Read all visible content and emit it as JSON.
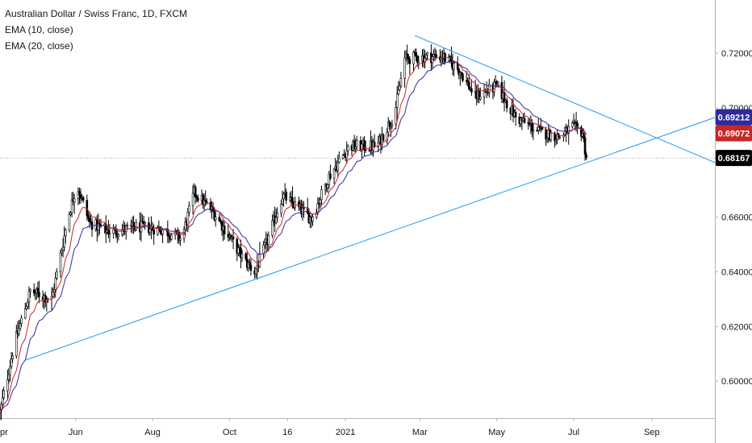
{
  "chart_data": {
    "type": "candlestick",
    "title": "Australian Dollar / Swiss Franc, 1D, FXCM",
    "indicators": [
      "EMA (10, close)",
      "EMA (20, close)"
    ],
    "y_axis": {
      "ticks": [
        "0.72000",
        "0.70000",
        "0.66000",
        "0.64000",
        "0.62000",
        "0.60000"
      ],
      "tick_values": [
        0.72,
        0.7,
        0.66,
        0.64,
        0.62,
        0.6
      ],
      "range": [
        0.5865,
        0.7395
      ]
    },
    "x_axis": {
      "ticks": [
        "pr",
        "Jun",
        "Aug",
        "Oct",
        "16",
        "2021",
        "Mar",
        "May",
        "Jul",
        "Sep"
      ],
      "tick_days": [
        1,
        61,
        122,
        183,
        229,
        275,
        334,
        395,
        456,
        518
      ],
      "range": [
        1,
        568
      ]
    },
    "price_labels": [
      {
        "name": "ema-20",
        "value": "0.69212",
        "color": "#2f2a9a"
      },
      {
        "name": "ema-10",
        "value": "0.69072",
        "color": "#c62828"
      },
      {
        "name": "last-price",
        "value": "0.68167",
        "color": "#000000"
      }
    ],
    "last_price": 0.68167,
    "trendlines": [
      {
        "name": "support-trendline",
        "points": [
          [
            20,
            0.6075
          ],
          [
            568,
            0.6965
          ]
        ]
      },
      {
        "name": "resistance-trendline",
        "points": [
          [
            330,
            0.7265
          ],
          [
            568,
            0.68
          ]
        ]
      }
    ],
    "anchors": [
      [
        1,
        0.5885
      ],
      [
        12,
        0.613
      ],
      [
        25,
        0.633
      ],
      [
        42,
        0.63
      ],
      [
        55,
        0.66
      ],
      [
        62,
        0.672
      ],
      [
        72,
        0.658
      ],
      [
        90,
        0.6545
      ],
      [
        110,
        0.6565
      ],
      [
        130,
        0.6555
      ],
      [
        145,
        0.652
      ],
      [
        155,
        0.669
      ],
      [
        170,
        0.662
      ],
      [
        180,
        0.655
      ],
      [
        195,
        0.644
      ],
      [
        203,
        0.64
      ],
      [
        212,
        0.65
      ],
      [
        225,
        0.668
      ],
      [
        248,
        0.6595
      ],
      [
        262,
        0.675
      ],
      [
        278,
        0.686
      ],
      [
        300,
        0.686
      ],
      [
        314,
        0.698
      ],
      [
        322,
        0.718
      ],
      [
        333,
        0.7185
      ],
      [
        352,
        0.719
      ],
      [
        366,
        0.7135
      ],
      [
        378,
        0.704
      ],
      [
        395,
        0.708
      ],
      [
        410,
        0.6965
      ],
      [
        430,
        0.691
      ],
      [
        445,
        0.6895
      ],
      [
        455,
        0.693
      ],
      [
        463,
        0.691
      ],
      [
        466,
        0.6817
      ]
    ],
    "ema_colors": {
      "ema10": "#c62828",
      "ema20": "#2f2a9a"
    },
    "trendline_color": "#2196f3",
    "candle_color": "#000000",
    "grid": false
  }
}
